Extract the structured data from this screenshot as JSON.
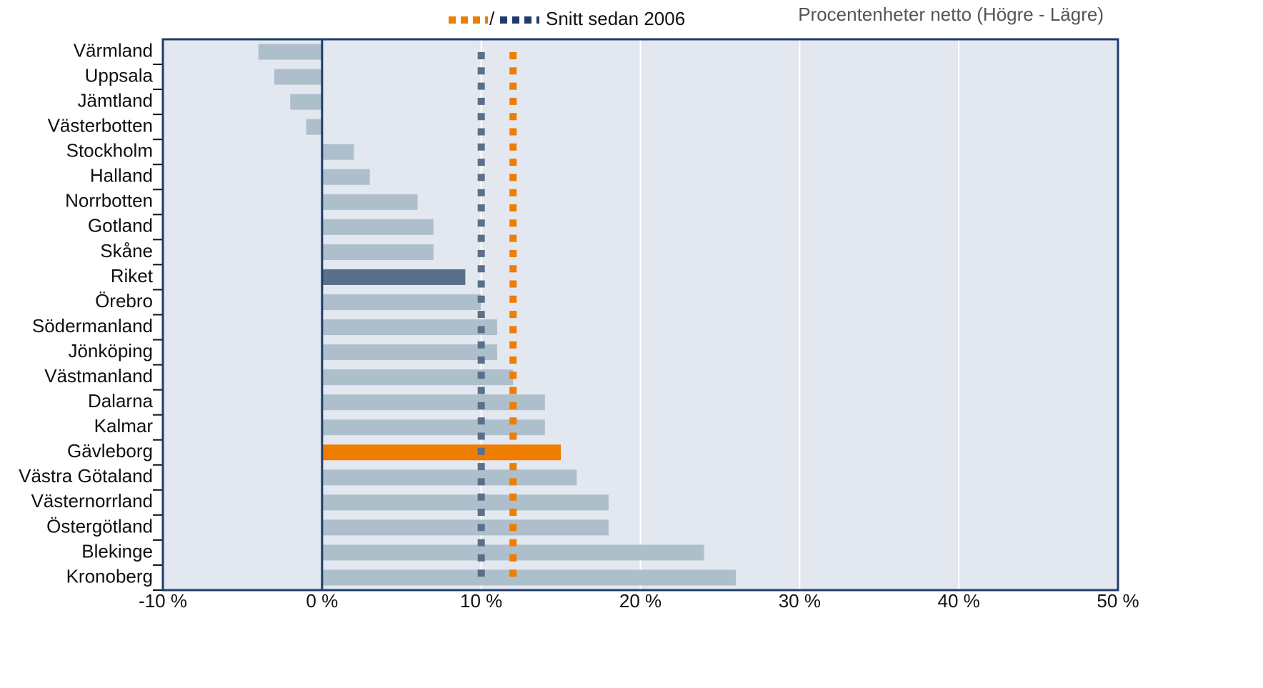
{
  "chart_data": {
    "type": "bar",
    "orientation": "horizontal",
    "annotation": "Procentenheter netto (Högre - Lägre)",
    "categories": [
      "Värmland",
      "Uppsala",
      "Jämtland",
      "Västerbotten",
      "Stockholm",
      "Halland",
      "Norrbotten",
      "Gotland",
      "Skåne",
      "Riket",
      "Örebro",
      "Södermanland",
      "Jönköping",
      "Västmanland",
      "Dalarna",
      "Kalmar",
      "Gävleborg",
      "Västra Götaland",
      "Västernorrland",
      "Östergötland",
      "Blekinge",
      "Kronoberg"
    ],
    "values": [
      -4,
      -3,
      -2,
      -1,
      2,
      3,
      6,
      7,
      7,
      9,
      10,
      11,
      11,
      12,
      14,
      14,
      15,
      16,
      18,
      18,
      24,
      26
    ],
    "colors": [
      "#aebfcc",
      "#aebfcc",
      "#aebfcc",
      "#aebfcc",
      "#aebfcc",
      "#aebfcc",
      "#aebfcc",
      "#aebfcc",
      "#aebfcc",
      "#587089",
      "#aebfcc",
      "#aebfcc",
      "#aebfcc",
      "#aebfcc",
      "#aebfcc",
      "#aebfcc",
      "#ee7d00",
      "#aebfcc",
      "#aebfcc",
      "#aebfcc",
      "#aebfcc",
      "#aebfcc"
    ],
    "xlim": [
      -10,
      50
    ],
    "xticks": [
      {
        "value": -10,
        "label": "-10 %"
      },
      {
        "value": 0,
        "label": "0 %"
      },
      {
        "value": 10,
        "label": "10 %"
      },
      {
        "value": 20,
        "label": "20 %"
      },
      {
        "value": 30,
        "label": "30 %"
      },
      {
        "value": 40,
        "label": "40 %"
      },
      {
        "value": 50,
        "label": "50 %"
      }
    ],
    "grid": true,
    "reference_lines": [
      {
        "value": 10,
        "color": "#587089"
      },
      {
        "value": 12,
        "color": "#ee7d00"
      }
    ],
    "legend": {
      "label": "Snitt sedan 2006",
      "separator": "/"
    }
  }
}
